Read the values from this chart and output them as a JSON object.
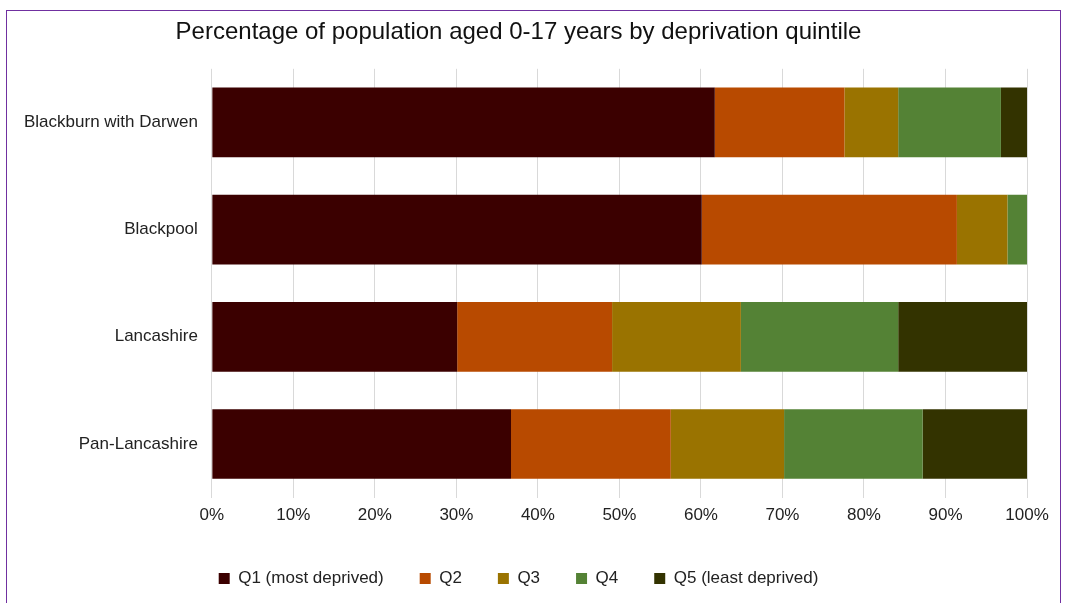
{
  "chart_data": {
    "type": "bar",
    "title": "Percentage of population aged 0-17 years by deprivation quintile",
    "orientation": "horizontal",
    "stacked": true,
    "categories": [
      "Blackburn with Darwen",
      "Blackpool",
      "Lancashire",
      "Pan-Lancashire"
    ],
    "series": [
      {
        "name": "Q1 (most deprived)",
        "color": "#3b0000",
        "values": [
          61.7,
          60.1,
          30.1,
          36.7
        ]
      },
      {
        "name": "Q2",
        "color": "#b84a00",
        "values": [
          15.9,
          31.3,
          19.0,
          19.6
        ]
      },
      {
        "name": "Q3",
        "color": "#9a7300",
        "values": [
          6.6,
          6.2,
          15.8,
          13.9
        ]
      },
      {
        "name": "Q4",
        "color": "#548235",
        "values": [
          12.6,
          2.4,
          19.3,
          17.0
        ]
      },
      {
        "name": "Q5 (least deprived)",
        "color": "#333300",
        "values": [
          3.2,
          0,
          15.8,
          12.8
        ]
      }
    ],
    "xlim": [
      0,
      100
    ],
    "xticks": [
      {
        "value": 0,
        "label": "0%"
      },
      {
        "value": 10,
        "label": "10%"
      },
      {
        "value": 20,
        "label": "20%"
      },
      {
        "value": 30,
        "label": "30%"
      },
      {
        "value": 40,
        "label": "40%"
      },
      {
        "value": 50,
        "label": "50%"
      },
      {
        "value": 60,
        "label": "60%"
      },
      {
        "value": 70,
        "label": "70%"
      },
      {
        "value": 80,
        "label": "80%"
      },
      {
        "value": 90,
        "label": "90%"
      },
      {
        "value": 100,
        "label": "100%"
      }
    ],
    "grid": "x",
    "legend": "bottom"
  }
}
